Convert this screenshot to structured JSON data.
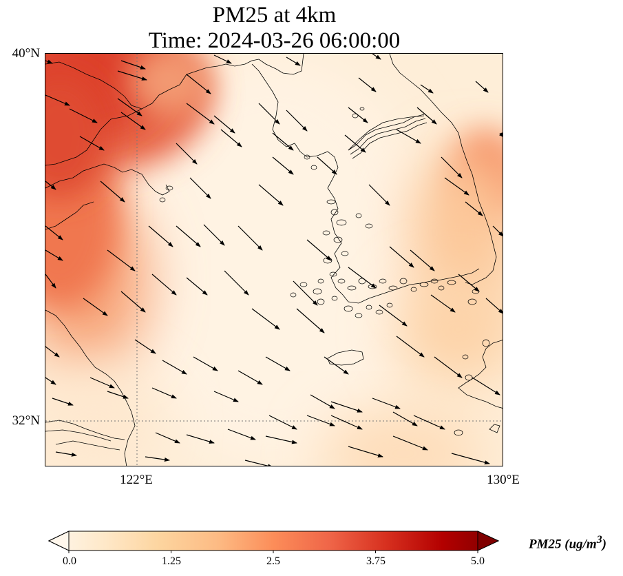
{
  "title": {
    "line1": "PM25 at 4km",
    "line2": "Time: 2024-03-26 06:00:00"
  },
  "axes": {
    "lat_labels": [
      "40°N",
      "32°N"
    ],
    "lon_labels": [
      "122°E",
      "130°E"
    ],
    "lat_values": [
      40,
      32
    ],
    "lon_values": [
      122,
      130
    ],
    "extent": {
      "lon_min": 120,
      "lon_max": 130,
      "lat_min": 31,
      "lat_max": 40
    }
  },
  "colorbar": {
    "label": "PM25 (ug/m",
    "label_sup": "3",
    "label_close": ")",
    "ticks": [
      "0.0",
      "1.25",
      "2.5",
      "3.75",
      "5.0"
    ],
    "tick_values": [
      0,
      1.25,
      2.5,
      3.75,
      5.0
    ],
    "min": 0,
    "max": 5,
    "colormap": "OrRd",
    "colors": [
      "#fff7ec",
      "#fee8c8",
      "#fdd49e",
      "#fdbb84",
      "#fc8d59",
      "#ef6548",
      "#d7301f",
      "#b30000",
      "#7f0000"
    ]
  },
  "map": {
    "field": "PM25",
    "high_concentration_regions": [
      {
        "name": "northwest corner",
        "lon": 121.3,
        "lat": 39.4,
        "value": 3.4
      },
      {
        "name": "western edge",
        "lon": 120.4,
        "lat": 36.5,
        "value": 2.6
      },
      {
        "name": "east coast Korea",
        "lon": 129.7,
        "lat": 37.4,
        "value": 2.4
      }
    ],
    "wind_direction": "northwesterly to westerly"
  }
}
